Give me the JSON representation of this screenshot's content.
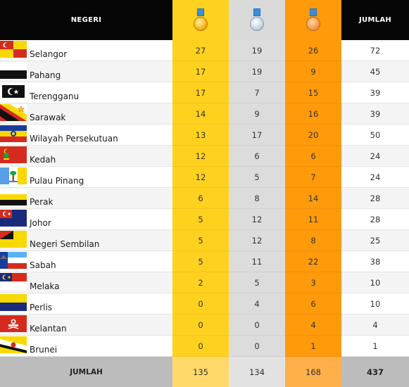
{
  "header": {
    "state_col": "NEGERI",
    "gold_icon": "gold-medal-icon",
    "silver_icon": "silver-medal-icon",
    "bronze_icon": "bronze-medal-icon",
    "total_col": "JUMLAH"
  },
  "rows": [
    {
      "state": "Selangor",
      "flag": "selangor-flag-icon",
      "gold": "27",
      "silver": "19",
      "bronze": "26",
      "total": "72"
    },
    {
      "state": "Pahang",
      "flag": "pahang-flag-icon",
      "gold": "17",
      "silver": "19",
      "bronze": "9",
      "total": "45"
    },
    {
      "state": "Terengganu",
      "flag": "terengganu-flag-icon",
      "gold": "17",
      "silver": "7",
      "bronze": "15",
      "total": "39"
    },
    {
      "state": "Sarawak",
      "flag": "sarawak-flag-icon",
      "gold": "14",
      "silver": "9",
      "bronze": "16",
      "total": "39"
    },
    {
      "state": "Wilayah Persekutuan",
      "flag": "wilayah-persekutuan-flag-icon",
      "gold": "13",
      "silver": "17",
      "bronze": "20",
      "total": "50"
    },
    {
      "state": "Kedah",
      "flag": "kedah-flag-icon",
      "gold": "12",
      "silver": "6",
      "bronze": "6",
      "total": "24"
    },
    {
      "state": "Pulau Pinang",
      "flag": "pulau-pinang-flag-icon",
      "gold": "12",
      "silver": "5",
      "bronze": "7",
      "total": "24"
    },
    {
      "state": "Perak",
      "flag": "perak-flag-icon",
      "gold": "6",
      "silver": "8",
      "bronze": "14",
      "total": "28"
    },
    {
      "state": "Johor",
      "flag": "johor-flag-icon",
      "gold": "5",
      "silver": "12",
      "bronze": "11",
      "total": "28"
    },
    {
      "state": "Negeri Sembilan",
      "flag": "negeri-sembilan-flag-icon",
      "gold": "5",
      "silver": "12",
      "bronze": "8",
      "total": "25"
    },
    {
      "state": "Sabah",
      "flag": "sabah-flag-icon",
      "gold": "5",
      "silver": "11",
      "bronze": "22",
      "total": "38"
    },
    {
      "state": "Melaka",
      "flag": "melaka-flag-icon",
      "gold": "2",
      "silver": "5",
      "bronze": "3",
      "total": "10"
    },
    {
      "state": "Perlis",
      "flag": "perlis-flag-icon",
      "gold": "0",
      "silver": "4",
      "bronze": "6",
      "total": "10"
    },
    {
      "state": "Kelantan",
      "flag": "kelantan-flag-icon",
      "gold": "0",
      "silver": "0",
      "bronze": "4",
      "total": "4"
    },
    {
      "state": "Brunei",
      "flag": "brunei-flag-icon",
      "gold": "0",
      "silver": "0",
      "bronze": "1",
      "total": "1"
    }
  ],
  "footer": {
    "label": "JUMLAH",
    "gold": "135",
    "silver": "134",
    "bronze": "168",
    "total": "437"
  },
  "colors": {
    "gold": "#ffd11f",
    "silver": "#dcdcdc",
    "bronze": "#ff9a0b",
    "header_bg": "#050505",
    "footer_bg": "#bcbcbc"
  }
}
